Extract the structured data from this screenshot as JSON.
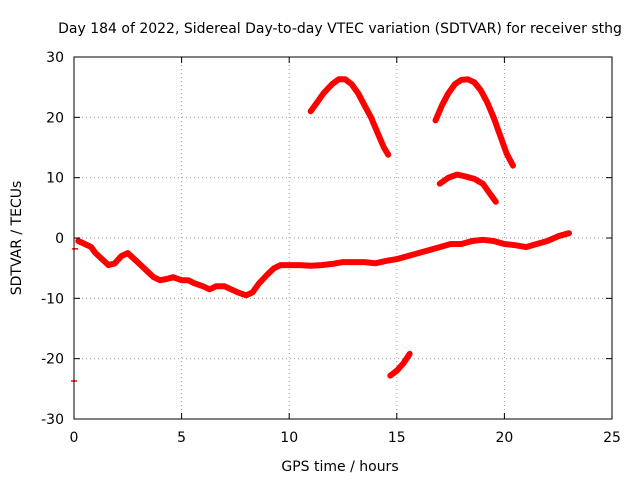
{
  "chart_data": {
    "type": "line",
    "title": "Day 184 of 2022, Sidereal Day-to-day VTEC variation (SDTVAR) for receiver sthg",
    "xlabel": "GPS time / hours",
    "ylabel": "SDTVAR / TECUs",
    "xlim": [
      0,
      25
    ],
    "ylim": [
      -30,
      30
    ],
    "xticks": [
      0,
      5,
      10,
      15,
      20,
      25
    ],
    "yticks": [
      -30,
      -20,
      -10,
      0,
      10,
      20,
      30
    ],
    "grid": true,
    "color": "#ff0000",
    "series": [
      {
        "name": "main",
        "x": [
          0.2,
          0.5,
          0.8,
          1.0,
          1.3,
          1.6,
          1.9,
          2.2,
          2.5,
          2.8,
          3.1,
          3.4,
          3.7,
          4.0,
          4.3,
          4.6,
          5.0,
          5.3,
          5.6,
          6.0,
          6.3,
          6.6,
          7.0,
          7.3,
          7.6,
          8.0,
          8.3,
          8.6,
          9.0,
          9.3,
          9.6,
          10.0,
          10.5,
          11.0,
          11.5,
          12.0,
          12.5,
          13.0,
          13.5,
          14.0,
          14.5,
          15.0,
          15.5,
          16.0,
          16.5,
          17.0,
          17.5,
          18.0,
          18.5,
          19.0,
          19.5,
          20.0,
          20.5,
          21.0,
          21.5,
          22.0,
          22.5,
          23.0
        ],
        "y": [
          -0.5,
          -1.0,
          -1.5,
          -2.5,
          -3.5,
          -4.5,
          -4.2,
          -3.0,
          -2.5,
          -3.5,
          -4.5,
          -5.5,
          -6.5,
          -7.0,
          -6.8,
          -6.5,
          -7.0,
          -7.0,
          -7.5,
          -8.0,
          -8.5,
          -8.0,
          -8.0,
          -8.5,
          -9.0,
          -9.5,
          -9.0,
          -7.5,
          -6.0,
          -5.0,
          -4.5,
          -4.5,
          -4.5,
          -4.6,
          -4.5,
          -4.3,
          -4.0,
          -4.0,
          -4.0,
          -4.2,
          -3.8,
          -3.5,
          -3.0,
          -2.5,
          -2.0,
          -1.5,
          -1.0,
          -1.0,
          -0.5,
          -0.3,
          -0.5,
          -1.0,
          -1.2,
          -1.5,
          -1.0,
          -0.5,
          0.3,
          0.8
        ]
      },
      {
        "name": "arc1",
        "x": [
          11.0,
          11.3,
          11.6,
          12.0,
          12.3,
          12.6,
          12.9,
          13.2,
          13.5,
          13.8,
          14.1,
          14.4,
          14.6
        ],
        "y": [
          21.0,
          22.5,
          24.0,
          25.5,
          26.3,
          26.3,
          25.5,
          24.0,
          22.0,
          20.0,
          17.5,
          15.0,
          13.8
        ]
      },
      {
        "name": "arc2",
        "x": [
          16.8,
          17.1,
          17.4,
          17.7,
          18.0,
          18.3,
          18.6,
          18.9,
          19.2,
          19.5,
          19.8,
          20.1,
          20.4
        ],
        "y": [
          19.5,
          22.0,
          24.0,
          25.5,
          26.2,
          26.3,
          25.8,
          24.5,
          22.5,
          20.0,
          17.0,
          14.0,
          12.0
        ]
      },
      {
        "name": "arc3",
        "x": [
          17.0,
          17.4,
          17.8,
          18.2,
          18.6,
          19.0,
          19.3,
          19.6
        ],
        "y": [
          9.0,
          10.0,
          10.5,
          10.2,
          9.8,
          9.0,
          7.5,
          6.0
        ]
      },
      {
        "name": "arc4",
        "x": [
          14.7,
          15.0,
          15.3,
          15.6
        ],
        "y": [
          -22.8,
          -22.0,
          -20.8,
          -19.2
        ]
      }
    ],
    "markers": [
      {
        "x": 0.05,
        "y": -1.8
      },
      {
        "x": 0.0,
        "y": -23.7
      }
    ]
  }
}
